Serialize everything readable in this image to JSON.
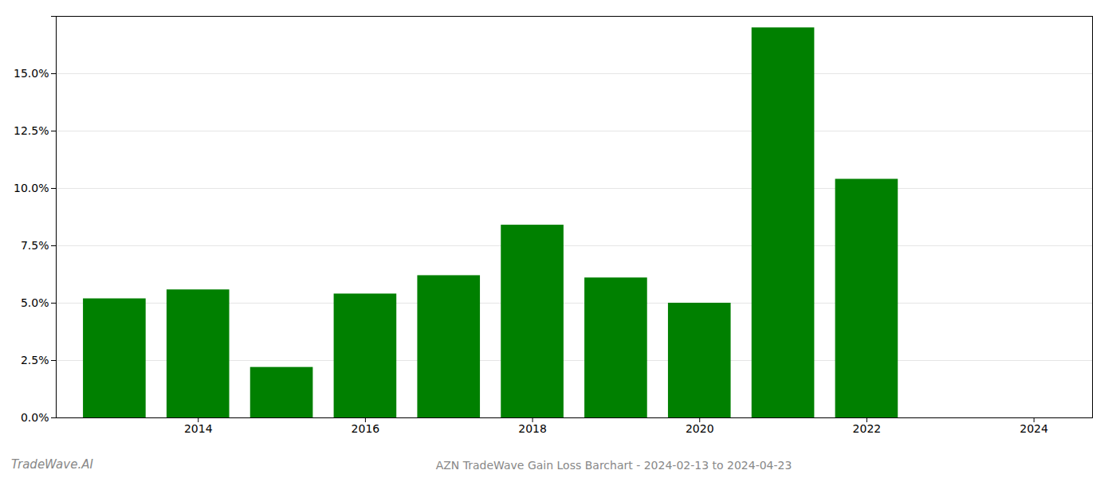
{
  "chart_data": {
    "type": "bar",
    "title": "AZN TradeWave Gain Loss Barchart - 2024-02-13 to 2024-04-23",
    "annotations": [
      "TradeWave.AI"
    ],
    "x": [
      2013,
      2014,
      2015,
      2016,
      2017,
      2018,
      2019,
      2020,
      2021,
      2022,
      2023
    ],
    "values": [
      0.0519,
      0.0558,
      0.022,
      0.054,
      0.062,
      0.084,
      0.061,
      0.05,
      0.17,
      0.104,
      0.0
    ],
    "color": "#008000",
    "xlim": [
      2012.3,
      2024.7
    ],
    "xticks": [
      2014,
      2016,
      2018,
      2020,
      2022,
      2024
    ],
    "ylim": [
      0.0,
      0.175
    ],
    "yticks": [
      {
        "value": 0.0,
        "label": "0.0%"
      },
      {
        "value": 0.025,
        "label": "2.5%"
      },
      {
        "value": 0.05,
        "label": "5.0%"
      },
      {
        "value": 0.075,
        "label": "7.5%"
      },
      {
        "value": 0.1,
        "label": "10.0%"
      },
      {
        "value": 0.125,
        "label": "12.5%"
      },
      {
        "value": 0.15,
        "label": "15.0%"
      },
      {
        "value": 0.175,
        "label": ""
      }
    ],
    "grid": true
  }
}
